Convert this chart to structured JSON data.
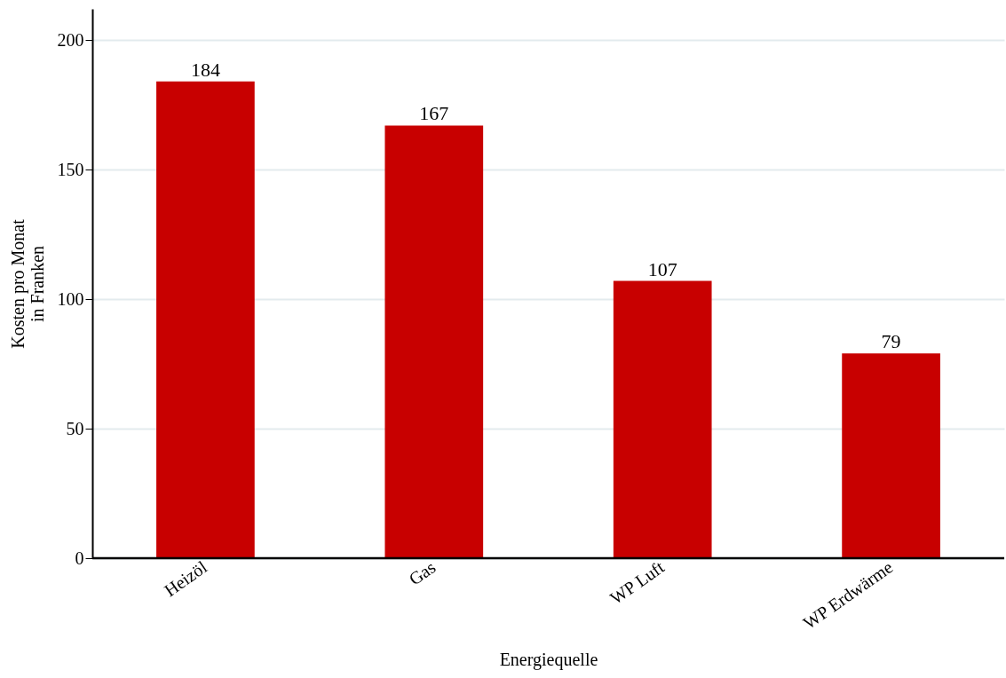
{
  "chart_data": {
    "type": "bar",
    "xlabel": "Energiequelle",
    "ylabel": "Kosten pro Monat\nin Franken",
    "categories": [
      "Heizöl",
      "Gas",
      "WP Luft",
      "WP Erdwärme"
    ],
    "values": [
      184,
      167,
      107,
      79
    ],
    "color": "#c80000",
    "ylim": [
      0,
      212
    ],
    "yticks": [
      0,
      50,
      100,
      150,
      200
    ],
    "grid": "y",
    "data_labels": true
  }
}
